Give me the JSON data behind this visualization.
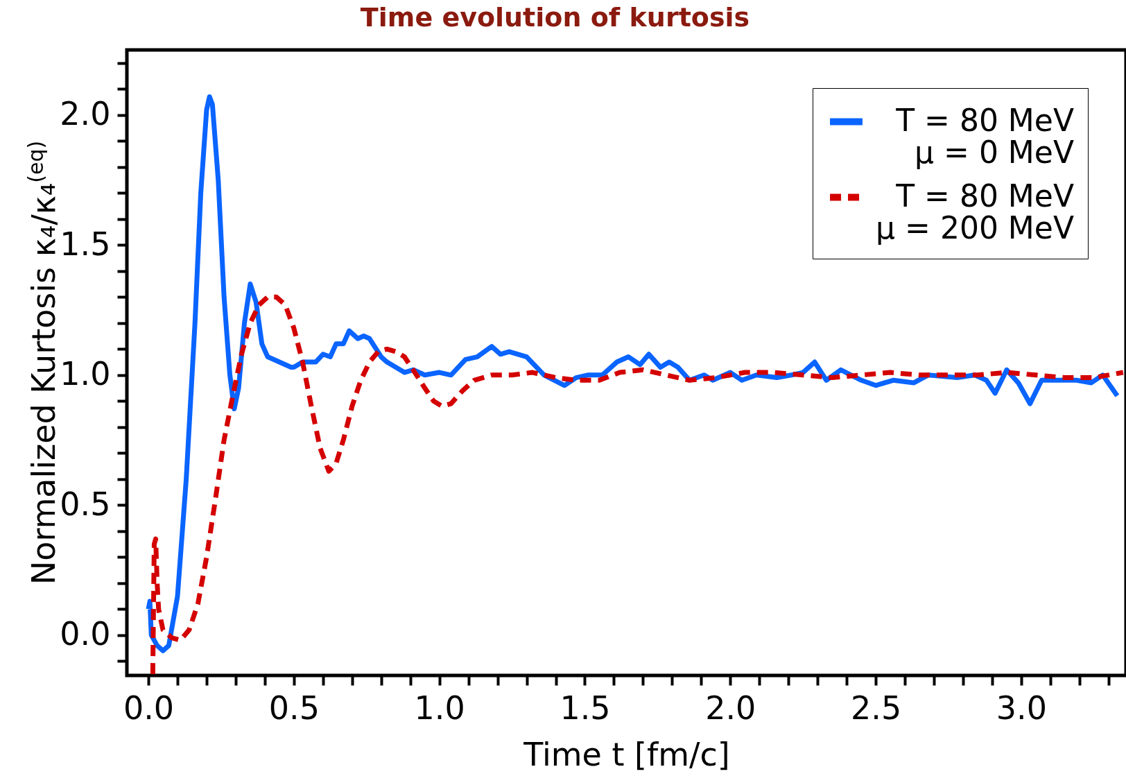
{
  "chart_data": {
    "type": "line",
    "title": "Time evolution of kurtosis",
    "xlabel": "Time t [fm/c]",
    "ylabel": "Normalized  Kurtosis κ₄/κ₄$^{(eq)}$",
    "xlim": [
      -0.074,
      3.36
    ],
    "ylim": [
      -0.155,
      2.25
    ],
    "xticks": [
      {
        "value": 0,
        "label": "0.0"
      },
      {
        "value": 0.1,
        "label": null
      },
      {
        "value": 0.2,
        "label": null
      },
      {
        "value": 0.3,
        "label": null
      },
      {
        "value": 0.4,
        "label": null
      },
      0.5,
      {
        "value": 0.6,
        "label": null
      },
      {
        "value": 0.7,
        "label": null
      },
      {
        "value": 0.8,
        "label": null
      },
      {
        "value": 0.9,
        "label": null
      },
      {
        "value": 1,
        "label": "1.0"
      },
      {
        "value": 1.1,
        "label": null
      },
      {
        "value": 1.2,
        "label": null
      },
      {
        "value": 1.3,
        "label": null
      },
      {
        "value": 1.4,
        "label": null
      },
      1.5,
      {
        "value": 1.6,
        "label": null
      },
      {
        "value": 1.7,
        "label": null
      },
      {
        "value": 1.8,
        "label": null
      },
      {
        "value": 1.9,
        "label": null
      },
      {
        "value": 2,
        "label": "2.0"
      },
      {
        "value": 2.1,
        "label": null
      },
      {
        "value": 2.2,
        "label": null
      },
      {
        "value": 2.3,
        "label": null
      },
      {
        "value": 2.4,
        "label": null
      },
      2.5,
      {
        "value": 2.6,
        "label": null
      },
      {
        "value": 2.7,
        "label": null
      },
      {
        "value": 2.8,
        "label": null
      },
      {
        "value": 2.9,
        "label": null
      },
      {
        "value": 3,
        "label": "3.0"
      },
      {
        "value": 3.1,
        "label": null
      },
      {
        "value": 3.2,
        "label": null
      },
      {
        "value": 3.3,
        "label": null
      }
    ],
    "yticks": [
      {
        "value": -0.1,
        "label": null
      },
      {
        "value": 0,
        "label": "0.0"
      },
      {
        "value": 0.1,
        "label": null
      },
      {
        "value": 0.2,
        "label": null
      },
      {
        "value": 0.3,
        "label": null
      },
      {
        "value": 0.4,
        "label": null
      },
      0.5,
      {
        "value": 0.6,
        "label": null
      },
      {
        "value": 0.7,
        "label": null
      },
      {
        "value": 0.8,
        "label": null
      },
      {
        "value": 0.9,
        "label": null
      },
      {
        "value": 1,
        "label": "1.0"
      },
      {
        "value": 1.1,
        "label": null
      },
      {
        "value": 1.2,
        "label": null
      },
      {
        "value": 1.3,
        "label": null
      },
      {
        "value": 1.4,
        "label": null
      },
      1.5,
      {
        "value": 1.6,
        "label": null
      },
      {
        "value": 1.7,
        "label": null
      },
      {
        "value": 1.8,
        "label": null
      },
      {
        "value": 1.9,
        "label": null
      },
      {
        "value": 2,
        "label": "2.0"
      },
      {
        "value": 2.1,
        "label": null
      },
      {
        "value": 2.2,
        "label": null
      }
    ],
    "grid": false,
    "legend": "top right",
    "series": [
      {
        "name": "T = 80 MeV\nμ = 0 MeV",
        "color": "#0a64ff",
        "line_style": "solid",
        "x": [
          0,
          0.005,
          0.01,
          0.03,
          0.05,
          0.07,
          0.1,
          0.13,
          0.16,
          0.18,
          0.2,
          0.21,
          0.22,
          0.24,
          0.26,
          0.28,
          0.295,
          0.31,
          0.33,
          0.35,
          0.37,
          0.39,
          0.41,
          0.43,
          0.45,
          0.47,
          0.49,
          0.5,
          0.53,
          0.575,
          0.6,
          0.625,
          0.645,
          0.67,
          0.69,
          0.72,
          0.74,
          0.76,
          0.8,
          0.82,
          0.85,
          0.88,
          0.91,
          0.95,
          1,
          1.04,
          1.09,
          1.13,
          1.18,
          1.21,
          1.24,
          1.3,
          1.36,
          1.43,
          1.47,
          1.51,
          1.56,
          1.61,
          1.65,
          1.69,
          1.72,
          1.76,
          1.79,
          1.82,
          1.86,
          1.91,
          1.94,
          2,
          2.04,
          2.09,
          2.16,
          2.21,
          2.25,
          2.29,
          2.33,
          2.38,
          2.45,
          2.5,
          2.56,
          2.63,
          2.68,
          2.78,
          2.84,
          2.88,
          2.91,
          2.95,
          2.99,
          3.03,
          3.07,
          3.19,
          3.24,
          3.28,
          3.33
        ],
        "values": [
          0.1,
          0.13,
          0,
          -0.04,
          -0.06,
          -0.04,
          0.15,
          0.6,
          1.2,
          1.7,
          2.02,
          2.07,
          2.04,
          1.75,
          1.3,
          1,
          0.87,
          0.95,
          1.2,
          1.35,
          1.28,
          1.12,
          1.07,
          1.06,
          1.05,
          1.04,
          1.03,
          1.03,
          1.05,
          1.05,
          1.08,
          1.07,
          1.12,
          1.12,
          1.17,
          1.14,
          1.15,
          1.14,
          1.07,
          1.05,
          1.03,
          1.01,
          1.02,
          1,
          1.01,
          1,
          1.06,
          1.07,
          1.11,
          1.08,
          1.09,
          1.07,
          1,
          0.96,
          0.99,
          1,
          1,
          1.05,
          1.07,
          1.04,
          1.08,
          1.03,
          1.05,
          1.03,
          0.98,
          1,
          0.98,
          1.01,
          0.98,
          1,
          0.99,
          1,
          1.01,
          1.05,
          0.98,
          1.02,
          0.98,
          0.96,
          0.98,
          0.97,
          1,
          0.99,
          1,
          0.98,
          0.93,
          1.02,
          0.97,
          0.89,
          0.98,
          0.98,
          0.97,
          1,
          0.92
        ]
      },
      {
        "name": "T = 80 MeV\nμ = 200 MeV",
        "color": "#d40000",
        "line_style": "dashed",
        "x": [
          0.015,
          0.02,
          0.025,
          0.03,
          0.035,
          0.05,
          0.08,
          0.11,
          0.14,
          0.17,
          0.2,
          0.23,
          0.26,
          0.29,
          0.32,
          0.35,
          0.38,
          0.41,
          0.44,
          0.47,
          0.5,
          0.53,
          0.56,
          0.59,
          0.62,
          0.645,
          0.67,
          0.7,
          0.73,
          0.76,
          0.79,
          0.82,
          0.85,
          0.88,
          0.91,
          0.95,
          0.98,
          1.01,
          1.04,
          1.08,
          1.12,
          1.18,
          1.25,
          1.32,
          1.4,
          1.47,
          1.55,
          1.62,
          1.7,
          1.78,
          1.86,
          1.95,
          2.05,
          2.15,
          2.25,
          2.35,
          2.45,
          2.55,
          2.65,
          2.75,
          2.85,
          2.95,
          3.05,
          3.15,
          3.25,
          3.35
        ],
        "values": [
          -0.15,
          0.35,
          0.37,
          0.2,
          0.1,
          0.02,
          -0.01,
          -0.02,
          0.02,
          0.12,
          0.3,
          0.52,
          0.75,
          0.92,
          1.08,
          1.2,
          1.27,
          1.3,
          1.3,
          1.27,
          1.18,
          1.05,
          0.88,
          0.72,
          0.63,
          0.66,
          0.75,
          0.88,
          0.98,
          1.05,
          1.09,
          1.1,
          1.09,
          1.07,
          1.02,
          0.95,
          0.9,
          0.88,
          0.89,
          0.94,
          0.98,
          1,
          1,
          1.01,
          0.99,
          0.98,
          0.98,
          1.01,
          1.02,
          1,
          0.98,
          0.99,
          1.01,
          1.01,
          1,
          0.99,
          1,
          1.01,
          1,
          1,
          1,
          1.01,
          1,
          0.99,
          0.99,
          1.01
        ]
      }
    ]
  }
}
